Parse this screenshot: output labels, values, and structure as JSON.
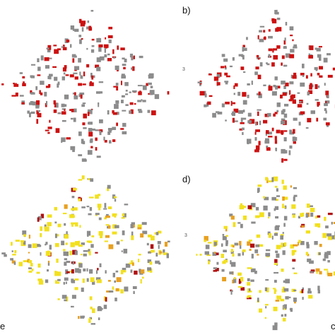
{
  "panel_labels": [
    "b)",
    "d)"
  ],
  "edge_texts": [
    "e",
    "c"
  ],
  "marker_texts": [
    "3",
    "3"
  ]
}
